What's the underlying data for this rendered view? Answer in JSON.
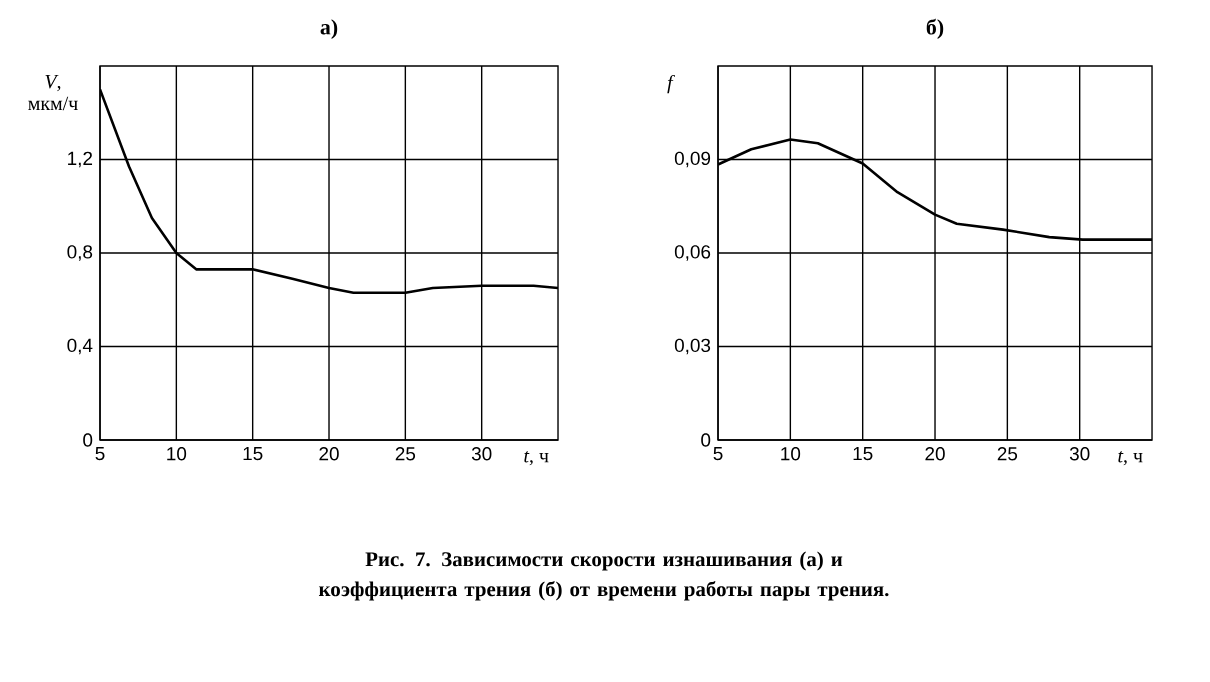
{
  "chart_data": [
    {
      "type": "line",
      "title": "а)",
      "xlabel": "*t*, ч",
      "ylabel": "*V*, мкм/ч",
      "x": [
        5,
        6.9,
        8.4,
        10,
        11.3,
        15,
        17.6,
        20,
        21.6,
        25,
        26.8,
        30,
        33.4,
        35
      ],
      "values": [
        1.5,
        1.17,
        0.95,
        0.8,
        0.73,
        0.73,
        0.69,
        0.65,
        0.63,
        0.63,
        0.65,
        0.66,
        0.66,
        0.65
      ],
      "color": "#000000",
      "xlim": [
        5,
        35
      ],
      "ylim": [
        0,
        1.6
      ],
      "xticks": [
        5,
        10,
        15,
        20,
        25,
        30
      ],
      "yticks": [
        0,
        {
          "value": 0.4,
          "label": "0,4"
        },
        {
          "value": 0.8,
          "label": "0,8"
        },
        {
          "value": 1.2,
          "label": "1,2"
        }
      ],
      "grid": true,
      "annotations": [
        "Рис. 7. Зависимости скорости изнашивания (а) и коэффициента трения (б) от времени работы пары трения."
      ]
    },
    {
      "type": "line",
      "title": "б)",
      "xlabel": "*t*, ч",
      "ylabel": "*f*",
      "x": [
        5,
        7.3,
        10,
        11.9,
        15,
        17.4,
        20,
        21.5,
        24.7,
        27.9,
        30.2,
        35
      ],
      "values": [
        0.0884,
        0.0933,
        0.0964,
        0.0952,
        0.0887,
        0.0795,
        0.0723,
        0.0694,
        0.0675,
        0.0651,
        0.0643,
        0.0643
      ],
      "color": "#000000",
      "xlim": [
        5,
        35
      ],
      "ylim": [
        0,
        0.12
      ],
      "xticks": [
        5,
        10,
        15,
        20,
        25,
        30
      ],
      "yticks": [
        0,
        {
          "value": 0.03,
          "label": "0,03"
        },
        {
          "value": 0.06,
          "label": "0,06"
        },
        {
          "value": 0.09,
          "label": "0,09"
        }
      ],
      "grid": true
    }
  ]
}
